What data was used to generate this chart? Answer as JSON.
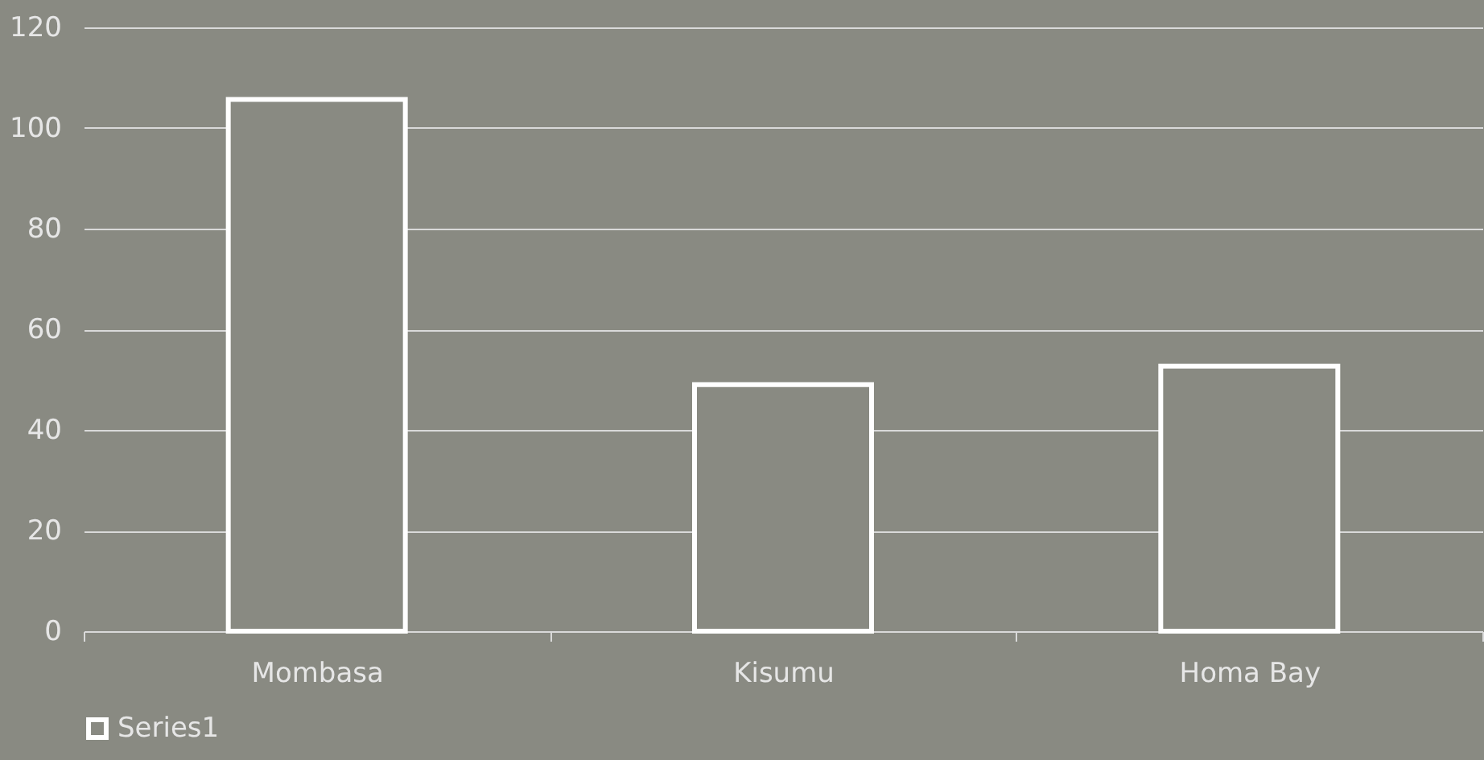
{
  "chart_data": {
    "type": "bar",
    "categories": [
      "Mombasa",
      "Kisumu",
      "Homa Bay"
    ],
    "series": [
      {
        "name": "Series1",
        "color": "#ffffff",
        "values": [
          105.7,
          49,
          52.7
        ]
      }
    ],
    "ylim": [
      0,
      120
    ],
    "yticks": [
      0,
      20,
      40,
      60,
      80,
      100,
      120
    ],
    "grid": "y",
    "legend": "bottom"
  }
}
